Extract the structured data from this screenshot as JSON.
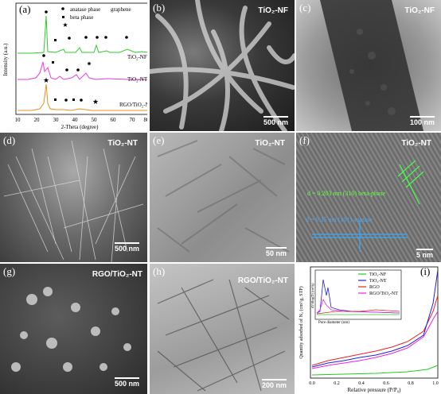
{
  "panels": {
    "a": {
      "label": "(a)",
      "legend": [
        "anatase phase",
        "beta phase",
        "graphene"
      ],
      "trace_labels": [
        "TiO₂-NF",
        "TiO₂-NT",
        "RGO/TiO₂-NT"
      ],
      "ylabel": "Intensity (a.u.)",
      "xlabel": "2-Theta (degree)",
      "xticks": [
        "10",
        "20",
        "30",
        "40",
        "50",
        "60",
        "70",
        "80"
      ],
      "colors": {
        "nf": "#2ecc2e",
        "nt": "#e83ce0",
        "rgo": "#e8901c"
      }
    },
    "b": {
      "label": "(b)",
      "title": "TiO₂-NF",
      "scale": "500 nm"
    },
    "c": {
      "label": "(c)",
      "title": "TiO₂-NF",
      "scale": "100 nm"
    },
    "d": {
      "label": "(d)",
      "title": "TiO₂-NT",
      "scale": "500 nm"
    },
    "e": {
      "label": "(e)",
      "title": "TiO₂-NT",
      "scale": "50 nm"
    },
    "f": {
      "label": "(f)",
      "title": "TiO₂-NT",
      "scale": "5 nm",
      "annot1": "d = 0.203 nm (310) beta-phase",
      "annot2": "d = 0.35 nm (101) anatase"
    },
    "g": {
      "label": "(g)",
      "title": "RGO/TiO₂-NT",
      "scale": "500 nm"
    },
    "h": {
      "label": "(h)",
      "title": "RGO/TiO₂-NT",
      "scale": "200 nm"
    },
    "i": {
      "label": "(i)",
      "ylabel": "Quantity adsorbed of N₂ (cm³/g, STP)",
      "xlabel": "Relative pressure (P/P₀)",
      "xticks": [
        "0.0",
        "0.2",
        "0.4",
        "0.6",
        "0.8",
        "1.0"
      ],
      "legend": [
        "TiO₂-NF",
        "TiO₂-NT",
        "RGO",
        "RGO/TiO₂-NT"
      ],
      "inset_ylabel": "dV/dlog(D) (cm³/g)",
      "inset_xlabel": "Pore diameter (nm)",
      "inset_xticks": [
        "2",
        "4",
        "6",
        "8",
        "10",
        "12",
        "14",
        "16",
        "18",
        "20"
      ],
      "colors": {
        "nf": "#22cc22",
        "nt": "#2222dd",
        "rgo": "#ee2222",
        "comp": "#ee22ee"
      }
    }
  }
}
